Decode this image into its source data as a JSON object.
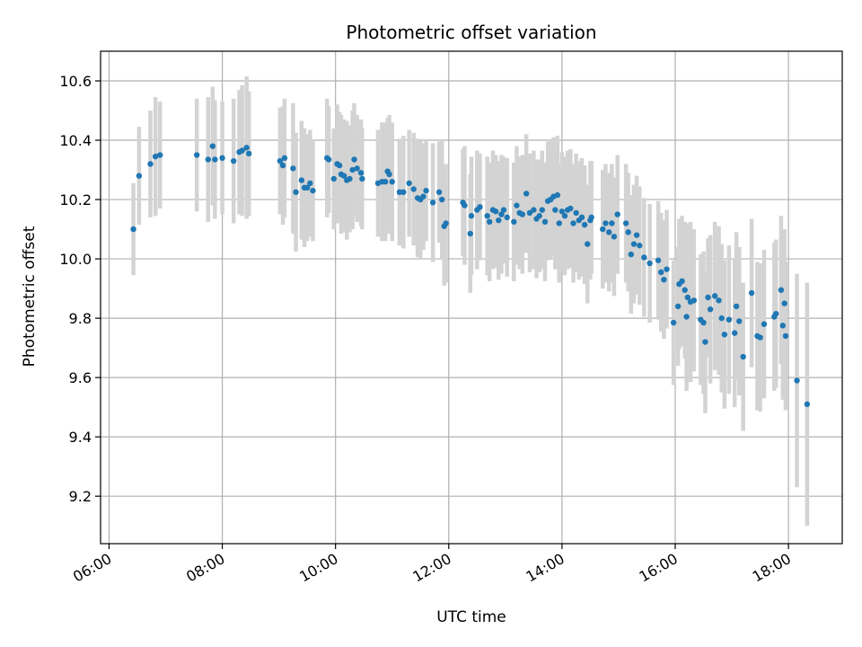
{
  "chart_data": {
    "type": "scatter",
    "title": "Photometric offset variation",
    "xlabel": "UTC time",
    "ylabel": "Photometric offset",
    "x_unit": "hours (UTC)",
    "xlim": [
      5.85,
      18.95
    ],
    "ylim": [
      9.04,
      10.7
    ],
    "x_ticks": [
      6,
      8,
      10,
      12,
      14,
      16,
      18
    ],
    "x_tick_labels": [
      "06:00",
      "08:00",
      "10:00",
      "12:00",
      "14:00",
      "16:00",
      "18:00"
    ],
    "y_ticks": [
      9.2,
      9.4,
      9.6,
      9.8,
      10.0,
      10.2,
      10.4,
      10.6
    ],
    "y_tick_labels": [
      "9.2",
      "9.4",
      "9.6",
      "9.8",
      "10.0",
      "10.2",
      "10.4",
      "10.6"
    ],
    "grid": true,
    "point_color": "#1f77b4",
    "errorbar_color": "#d3d3d3",
    "points": [
      {
        "x": 6.43,
        "y": 10.1,
        "err": 0.155
      },
      {
        "x": 6.53,
        "y": 10.28,
        "err": 0.165
      },
      {
        "x": 6.73,
        "y": 10.32,
        "err": 0.18
      },
      {
        "x": 6.82,
        "y": 10.345,
        "err": 0.2
      },
      {
        "x": 6.9,
        "y": 10.35,
        "err": 0.18
      },
      {
        "x": 7.55,
        "y": 10.35,
        "err": 0.19
      },
      {
        "x": 7.75,
        "y": 10.335,
        "err": 0.21
      },
      {
        "x": 7.83,
        "y": 10.38,
        "err": 0.2
      },
      {
        "x": 7.87,
        "y": 10.335,
        "err": 0.2
      },
      {
        "x": 8.0,
        "y": 10.34,
        "err": 0.19
      },
      {
        "x": 8.2,
        "y": 10.33,
        "err": 0.21
      },
      {
        "x": 8.3,
        "y": 10.36,
        "err": 0.21
      },
      {
        "x": 8.35,
        "y": 10.365,
        "err": 0.22
      },
      {
        "x": 8.43,
        "y": 10.375,
        "err": 0.24
      },
      {
        "x": 8.47,
        "y": 10.355,
        "err": 0.21
      },
      {
        "x": 9.02,
        "y": 10.33,
        "err": 0.18
      },
      {
        "x": 9.07,
        "y": 10.315,
        "err": 0.2
      },
      {
        "x": 9.1,
        "y": 10.34,
        "err": 0.2
      },
      {
        "x": 9.25,
        "y": 10.305,
        "err": 0.22
      },
      {
        "x": 9.3,
        "y": 10.225,
        "err": 0.2
      },
      {
        "x": 9.4,
        "y": 10.265,
        "err": 0.2
      },
      {
        "x": 9.45,
        "y": 10.24,
        "err": 0.2
      },
      {
        "x": 9.5,
        "y": 10.24,
        "err": 0.18
      },
      {
        "x": 9.55,
        "y": 10.255,
        "err": 0.18
      },
      {
        "x": 9.6,
        "y": 10.23,
        "err": 0.17
      },
      {
        "x": 9.85,
        "y": 10.34,
        "err": 0.2
      },
      {
        "x": 9.88,
        "y": 10.335,
        "err": 0.18
      },
      {
        "x": 9.97,
        "y": 10.27,
        "err": 0.17
      },
      {
        "x": 10.03,
        "y": 10.32,
        "err": 0.2
      },
      {
        "x": 10.07,
        "y": 10.315,
        "err": 0.18
      },
      {
        "x": 10.1,
        "y": 10.285,
        "err": 0.2
      },
      {
        "x": 10.15,
        "y": 10.28,
        "err": 0.19
      },
      {
        "x": 10.2,
        "y": 10.265,
        "err": 0.2
      },
      {
        "x": 10.25,
        "y": 10.27,
        "err": 0.18
      },
      {
        "x": 10.3,
        "y": 10.3,
        "err": 0.2
      },
      {
        "x": 10.33,
        "y": 10.335,
        "err": 0.19
      },
      {
        "x": 10.38,
        "y": 10.305,
        "err": 0.18
      },
      {
        "x": 10.45,
        "y": 10.29,
        "err": 0.18
      },
      {
        "x": 10.47,
        "y": 10.27,
        "err": 0.17
      },
      {
        "x": 10.75,
        "y": 10.255,
        "err": 0.18
      },
      {
        "x": 10.82,
        "y": 10.26,
        "err": 0.2
      },
      {
        "x": 10.88,
        "y": 10.26,
        "err": 0.2
      },
      {
        "x": 10.92,
        "y": 10.295,
        "err": 0.18
      },
      {
        "x": 10.95,
        "y": 10.285,
        "err": 0.2
      },
      {
        "x": 11.0,
        "y": 10.26,
        "err": 0.2
      },
      {
        "x": 11.13,
        "y": 10.225,
        "err": 0.18
      },
      {
        "x": 11.2,
        "y": 10.225,
        "err": 0.19
      },
      {
        "x": 11.3,
        "y": 10.255,
        "err": 0.18
      },
      {
        "x": 11.38,
        "y": 10.235,
        "err": 0.19
      },
      {
        "x": 11.45,
        "y": 10.205,
        "err": 0.2
      },
      {
        "x": 11.5,
        "y": 10.2,
        "err": 0.2
      },
      {
        "x": 11.55,
        "y": 10.21,
        "err": 0.18
      },
      {
        "x": 11.6,
        "y": 10.23,
        "err": 0.17
      },
      {
        "x": 11.72,
        "y": 10.19,
        "err": 0.2
      },
      {
        "x": 11.83,
        "y": 10.225,
        "err": 0.17
      },
      {
        "x": 11.88,
        "y": 10.2,
        "err": 0.2
      },
      {
        "x": 11.92,
        "y": 10.11,
        "err": 0.2
      },
      {
        "x": 11.95,
        "y": 10.12,
        "err": 0.2
      },
      {
        "x": 12.25,
        "y": 10.19,
        "err": 0.18
      },
      {
        "x": 12.28,
        "y": 10.18,
        "err": 0.2
      },
      {
        "x": 12.38,
        "y": 10.085,
        "err": 0.2
      },
      {
        "x": 12.4,
        "y": 10.145,
        "err": 0.2
      },
      {
        "x": 12.5,
        "y": 10.165,
        "err": 0.2
      },
      {
        "x": 12.55,
        "y": 10.175,
        "err": 0.18
      },
      {
        "x": 12.68,
        "y": 10.145,
        "err": 0.2
      },
      {
        "x": 12.72,
        "y": 10.125,
        "err": 0.2
      },
      {
        "x": 12.78,
        "y": 10.165,
        "err": 0.2
      },
      {
        "x": 12.83,
        "y": 10.16,
        "err": 0.19
      },
      {
        "x": 12.88,
        "y": 10.13,
        "err": 0.2
      },
      {
        "x": 12.93,
        "y": 10.15,
        "err": 0.2
      },
      {
        "x": 12.97,
        "y": 10.165,
        "err": 0.18
      },
      {
        "x": 13.03,
        "y": 10.14,
        "err": 0.2
      },
      {
        "x": 13.15,
        "y": 10.125,
        "err": 0.2
      },
      {
        "x": 13.2,
        "y": 10.18,
        "err": 0.2
      },
      {
        "x": 13.25,
        "y": 10.155,
        "err": 0.19
      },
      {
        "x": 13.3,
        "y": 10.15,
        "err": 0.2
      },
      {
        "x": 13.37,
        "y": 10.22,
        "err": 0.2
      },
      {
        "x": 13.43,
        "y": 10.155,
        "err": 0.2
      },
      {
        "x": 13.5,
        "y": 10.165,
        "err": 0.2
      },
      {
        "x": 13.55,
        "y": 10.135,
        "err": 0.2
      },
      {
        "x": 13.6,
        "y": 10.145,
        "err": 0.19
      },
      {
        "x": 13.65,
        "y": 10.165,
        "err": 0.2
      },
      {
        "x": 13.7,
        "y": 10.125,
        "err": 0.2
      },
      {
        "x": 13.75,
        "y": 10.195,
        "err": 0.2
      },
      {
        "x": 13.8,
        "y": 10.2,
        "err": 0.2
      },
      {
        "x": 13.85,
        "y": 10.21,
        "err": 0.2
      },
      {
        "x": 13.88,
        "y": 10.165,
        "err": 0.2
      },
      {
        "x": 13.92,
        "y": 10.215,
        "err": 0.2
      },
      {
        "x": 13.95,
        "y": 10.12,
        "err": 0.2
      },
      {
        "x": 14.0,
        "y": 10.16,
        "err": 0.2
      },
      {
        "x": 14.05,
        "y": 10.145,
        "err": 0.2
      },
      {
        "x": 14.1,
        "y": 10.165,
        "err": 0.2
      },
      {
        "x": 14.15,
        "y": 10.17,
        "err": 0.2
      },
      {
        "x": 14.2,
        "y": 10.12,
        "err": 0.2
      },
      {
        "x": 14.25,
        "y": 10.155,
        "err": 0.2
      },
      {
        "x": 14.3,
        "y": 10.13,
        "err": 0.2
      },
      {
        "x": 14.35,
        "y": 10.14,
        "err": 0.2
      },
      {
        "x": 14.4,
        "y": 10.115,
        "err": 0.2
      },
      {
        "x": 14.45,
        "y": 10.05,
        "err": 0.2
      },
      {
        "x": 14.5,
        "y": 10.13,
        "err": 0.2
      },
      {
        "x": 14.52,
        "y": 10.14,
        "err": 0.19
      },
      {
        "x": 14.72,
        "y": 10.1,
        "err": 0.2
      },
      {
        "x": 14.77,
        "y": 10.12,
        "err": 0.2
      },
      {
        "x": 14.83,
        "y": 10.09,
        "err": 0.2
      },
      {
        "x": 14.88,
        "y": 10.12,
        "err": 0.2
      },
      {
        "x": 14.92,
        "y": 10.075,
        "err": 0.2
      },
      {
        "x": 14.98,
        "y": 10.15,
        "err": 0.2
      },
      {
        "x": 15.13,
        "y": 10.12,
        "err": 0.2
      },
      {
        "x": 15.17,
        "y": 10.09,
        "err": 0.2
      },
      {
        "x": 15.22,
        "y": 10.015,
        "err": 0.2
      },
      {
        "x": 15.27,
        "y": 10.05,
        "err": 0.2
      },
      {
        "x": 15.32,
        "y": 10.08,
        "err": 0.2
      },
      {
        "x": 15.37,
        "y": 10.045,
        "err": 0.2
      },
      {
        "x": 15.45,
        "y": 10.005,
        "err": 0.2
      },
      {
        "x": 15.55,
        "y": 9.985,
        "err": 0.2
      },
      {
        "x": 15.7,
        "y": 9.995,
        "err": 0.2
      },
      {
        "x": 15.75,
        "y": 9.955,
        "err": 0.2
      },
      {
        "x": 15.8,
        "y": 9.93,
        "err": 0.2
      },
      {
        "x": 15.85,
        "y": 9.965,
        "err": 0.2
      },
      {
        "x": 15.97,
        "y": 9.785,
        "err": 0.21
      },
      {
        "x": 16.05,
        "y": 9.84,
        "err": 0.2
      },
      {
        "x": 16.07,
        "y": 9.915,
        "err": 0.22
      },
      {
        "x": 16.12,
        "y": 9.925,
        "err": 0.22
      },
      {
        "x": 16.17,
        "y": 9.895,
        "err": 0.23
      },
      {
        "x": 16.2,
        "y": 9.805,
        "err": 0.25
      },
      {
        "x": 16.22,
        "y": 9.87,
        "err": 0.25
      },
      {
        "x": 16.27,
        "y": 9.855,
        "err": 0.27
      },
      {
        "x": 16.33,
        "y": 9.86,
        "err": 0.24
      },
      {
        "x": 16.45,
        "y": 9.795,
        "err": 0.22
      },
      {
        "x": 16.5,
        "y": 9.785,
        "err": 0.24
      },
      {
        "x": 16.53,
        "y": 9.72,
        "err": 0.24
      },
      {
        "x": 16.58,
        "y": 9.87,
        "err": 0.2
      },
      {
        "x": 16.62,
        "y": 9.83,
        "err": 0.25
      },
      {
        "x": 16.7,
        "y": 9.875,
        "err": 0.25
      },
      {
        "x": 16.77,
        "y": 9.86,
        "err": 0.25
      },
      {
        "x": 16.82,
        "y": 9.8,
        "err": 0.25
      },
      {
        "x": 16.87,
        "y": 9.745,
        "err": 0.25
      },
      {
        "x": 16.95,
        "y": 9.795,
        "err": 0.25
      },
      {
        "x": 17.05,
        "y": 9.75,
        "err": 0.25
      },
      {
        "x": 17.08,
        "y": 9.84,
        "err": 0.25
      },
      {
        "x": 17.13,
        "y": 9.79,
        "err": 0.25
      },
      {
        "x": 17.2,
        "y": 9.67,
        "err": 0.25
      },
      {
        "x": 17.35,
        "y": 9.885,
        "err": 0.25
      },
      {
        "x": 17.45,
        "y": 9.74,
        "err": 0.25
      },
      {
        "x": 17.5,
        "y": 9.735,
        "err": 0.25
      },
      {
        "x": 17.57,
        "y": 9.78,
        "err": 0.25
      },
      {
        "x": 17.75,
        "y": 9.805,
        "err": 0.25
      },
      {
        "x": 17.78,
        "y": 9.815,
        "err": 0.25
      },
      {
        "x": 17.87,
        "y": 9.895,
        "err": 0.25
      },
      {
        "x": 17.9,
        "y": 9.775,
        "err": 0.25
      },
      {
        "x": 17.93,
        "y": 9.85,
        "err": 0.25
      },
      {
        "x": 17.95,
        "y": 9.74,
        "err": 0.25
      },
      {
        "x": 18.15,
        "y": 9.59,
        "err": 0.36
      },
      {
        "x": 18.33,
        "y": 9.51,
        "err": 0.41
      }
    ]
  }
}
